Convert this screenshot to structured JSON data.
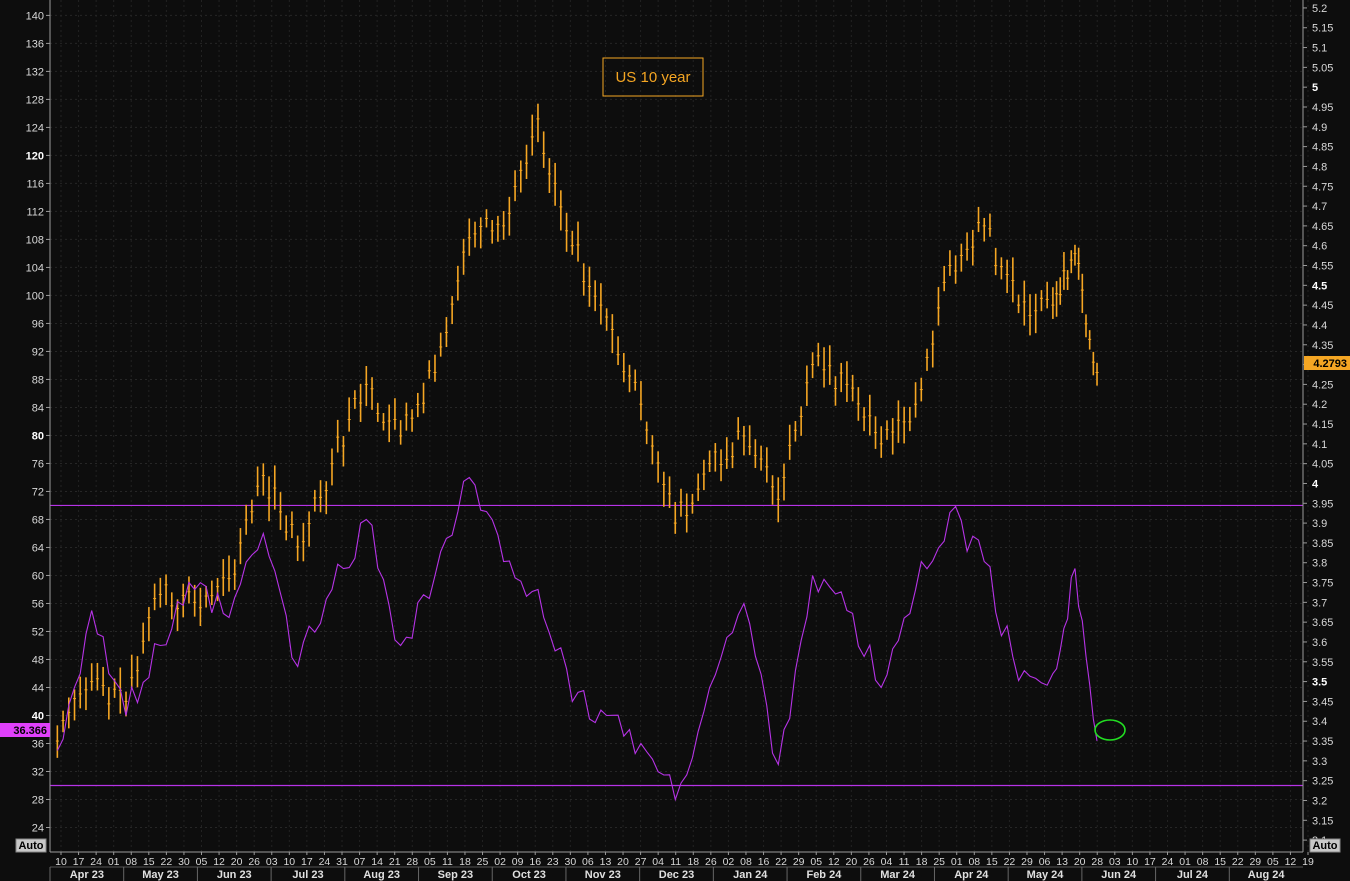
{
  "legend": {
    "label": "US 10 year"
  },
  "controls": {
    "left_auto": "Auto",
    "right_auto": "Auto"
  },
  "last_values": {
    "left": "36.366",
    "right": "4.2793"
  },
  "colors": {
    "background": "#0d0d0d",
    "grid": "#2a2a2a",
    "yield": "#f5a623",
    "oscillator": "#b633e6",
    "highlight_circle": "#22dd22",
    "left_tag": "#e040fb",
    "right_tag": "#f5a623"
  },
  "chart_data": {
    "type": "line",
    "left_axis": {
      "ticks": [
        24,
        28,
        32,
        36,
        40,
        44,
        48,
        52,
        56,
        60,
        64,
        68,
        72,
        76,
        80,
        84,
        88,
        92,
        96,
        100,
        104,
        108,
        112,
        116,
        120,
        124,
        128,
        132,
        136,
        140
      ],
      "bold_ticks": [
        40,
        80,
        120
      ],
      "range": [
        20.5,
        142.2
      ]
    },
    "right_axis": {
      "ticks": [
        3.1,
        3.15,
        3.2,
        3.25,
        3.3,
        3.35,
        3.4,
        3.45,
        3.5,
        3.55,
        3.6,
        3.65,
        3.7,
        3.75,
        3.8,
        3.85,
        3.9,
        3.95,
        4,
        4.05,
        4.1,
        4.15,
        4.2,
        4.25,
        4.3,
        4.35,
        4.4,
        4.45,
        4.5,
        4.55,
        4.6,
        4.65,
        4.7,
        4.75,
        4.8,
        4.85,
        4.9,
        4.95,
        5,
        5.05,
        5.1,
        5.15,
        5.2
      ],
      "bold_ticks": [
        3.5,
        4,
        4.5,
        5
      ],
      "range": [
        3.07,
        5.22
      ]
    },
    "x_axis": {
      "date_ticks": [
        "10",
        "17",
        "24",
        "01",
        "08",
        "15",
        "22",
        "30",
        "05",
        "12",
        "20",
        "26",
        "03",
        "10",
        "17",
        "24",
        "31",
        "07",
        "14",
        "21",
        "28",
        "05",
        "11",
        "18",
        "25",
        "02",
        "09",
        "16",
        "23",
        "30",
        "06",
        "13",
        "20",
        "27",
        "04",
        "11",
        "18",
        "26",
        "02",
        "08",
        "16",
        "22",
        "29",
        "05",
        "12",
        "20",
        "26",
        "04",
        "11",
        "18",
        "25",
        "01",
        "08",
        "15",
        "22",
        "29",
        "06",
        "13",
        "20",
        "28",
        "03",
        "10",
        "17",
        "24",
        "01",
        "08",
        "15",
        "22",
        "29",
        "05",
        "12",
        "19"
      ],
      "months": [
        "Apr 23",
        "May 23",
        "Jun 23",
        "Jul 23",
        "Aug 23",
        "Sep 23",
        "Oct 23",
        "Nov 23",
        "Dec 23",
        "Jan 24",
        "Feb 24",
        "Mar 24",
        "Apr 24",
        "May 24",
        "Jun 24",
        "Jul 24",
        "Aug 24"
      ]
    },
    "reference_lines": [
      {
        "axis": "left",
        "value": 70.0
      },
      {
        "axis": "left",
        "value": 30.0
      }
    ],
    "series": [
      {
        "name": "US 10 year",
        "axis": "right",
        "style": "bars",
        "x": [
          "2023-04-10",
          "2023-04-24",
          "2023-05-08",
          "2023-05-22",
          "2023-06-05",
          "2023-06-19",
          "2023-07-03",
          "2023-07-17",
          "2023-07-31",
          "2023-08-14",
          "2023-08-28",
          "2023-09-11",
          "2023-09-25",
          "2023-10-09",
          "2023-10-23",
          "2023-11-06",
          "2023-11-20",
          "2023-12-04",
          "2023-12-18",
          "2024-01-01",
          "2024-01-15",
          "2024-01-29",
          "2024-02-12",
          "2024-02-26",
          "2024-03-11",
          "2024-03-25",
          "2024-04-08",
          "2024-04-22",
          "2024-05-06",
          "2024-05-20",
          "2024-05-29",
          "2024-06-07"
        ],
        "values": [
          3.35,
          3.5,
          3.45,
          3.72,
          3.7,
          3.76,
          4.02,
          3.84,
          4.05,
          4.25,
          4.12,
          4.28,
          4.62,
          4.65,
          4.92,
          4.6,
          4.42,
          4.2,
          3.9,
          4.05,
          4.12,
          3.96,
          4.3,
          4.25,
          4.1,
          4.2,
          4.55,
          4.65,
          4.45,
          4.45,
          4.58,
          4.28
        ]
      },
      {
        "name": "",
        "axis": "left",
        "style": "line",
        "x": [
          "2023-04-10",
          "2023-04-24",
          "2023-05-08",
          "2023-05-22",
          "2023-06-05",
          "2023-06-19",
          "2023-07-03",
          "2023-07-17",
          "2023-07-31",
          "2023-08-14",
          "2023-08-28",
          "2023-09-11",
          "2023-09-25",
          "2023-10-09",
          "2023-10-23",
          "2023-11-06",
          "2023-11-20",
          "2023-12-04",
          "2023-12-18",
          "2024-01-01",
          "2024-01-15",
          "2024-01-29",
          "2024-02-12",
          "2024-02-26",
          "2024-03-11",
          "2024-03-25",
          "2024-04-08",
          "2024-04-22",
          "2024-05-06",
          "2024-05-20",
          "2024-05-29",
          "2024-06-07"
        ],
        "values": [
          35,
          55,
          40,
          50,
          58,
          54,
          66,
          47,
          58,
          68,
          50,
          60,
          74,
          62,
          58,
          42,
          40,
          36,
          28,
          44,
          56,
          33,
          60,
          55,
          44,
          58,
          69,
          62,
          45,
          46,
          61,
          36.366
        ]
      }
    ]
  }
}
